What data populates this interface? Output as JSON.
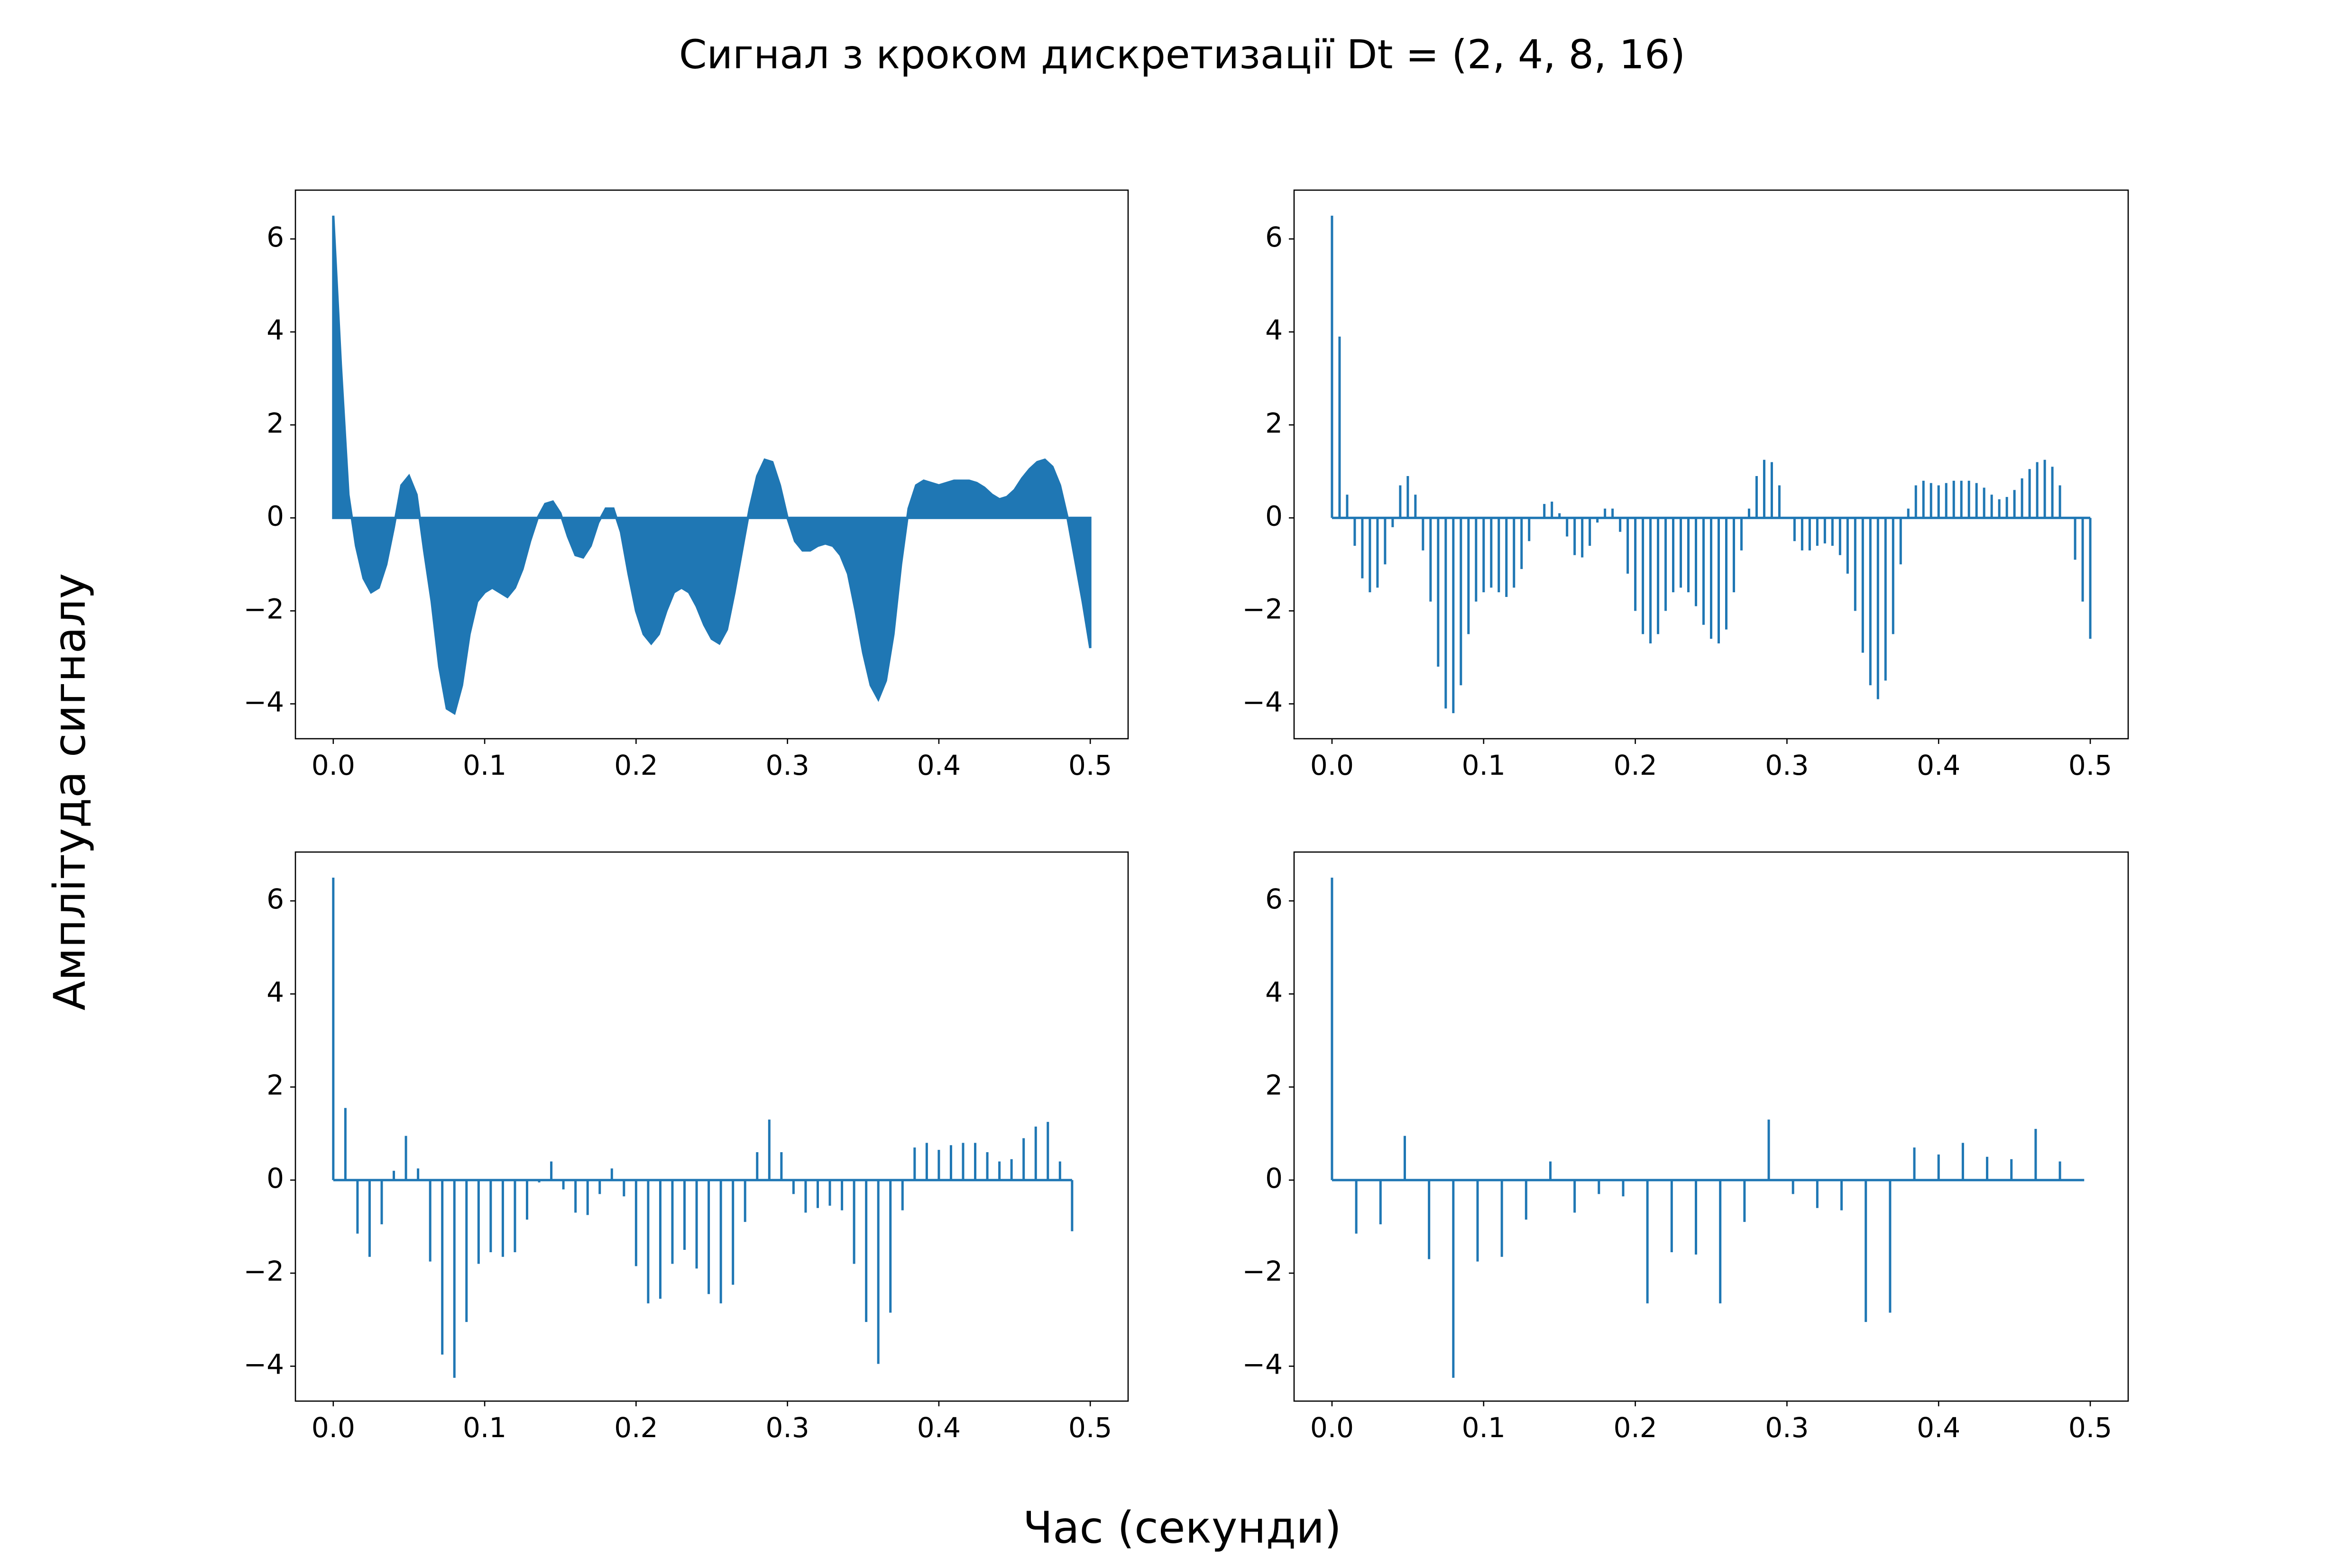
{
  "title": "Сигнал з кроком дискретизації Dt = (2, 4, 8, 16)",
  "xlabel": "Час (секунди)",
  "ylabel": "Амплітуда сигналу",
  "chart_data": [
    {
      "type": "area",
      "color": "#1f77b4",
      "x": [
        0,
        0.005,
        0.01,
        0.015,
        0.02,
        0.025,
        0.03,
        0.035,
        0.04,
        0.045,
        0.05,
        0.055,
        0.06,
        0.065,
        0.07,
        0.075,
        0.08,
        0.085,
        0.09,
        0.095,
        0.1,
        0.105,
        0.11,
        0.115,
        0.12,
        0.125,
        0.13,
        0.135,
        0.14,
        0.145,
        0.15,
        0.155,
        0.16,
        0.165,
        0.17,
        0.175,
        0.18,
        0.185,
        0.19,
        0.195,
        0.2,
        0.205,
        0.21,
        0.215,
        0.22,
        0.225,
        0.23,
        0.235,
        0.24,
        0.245,
        0.25,
        0.255,
        0.26,
        0.265,
        0.27,
        0.275,
        0.28,
        0.285,
        0.29,
        0.295,
        0.3,
        0.305,
        0.31,
        0.315,
        0.32,
        0.325,
        0.33,
        0.335,
        0.34,
        0.345,
        0.35,
        0.355,
        0.36,
        0.365,
        0.37,
        0.375,
        0.38,
        0.385,
        0.39,
        0.395,
        0.4,
        0.405,
        0.41,
        0.415,
        0.42,
        0.425,
        0.43,
        0.435,
        0.44,
        0.445,
        0.45,
        0.455,
        0.46,
        0.465,
        0.47,
        0.475,
        0.48,
        0.485,
        0.49,
        0.495,
        0.5
      ],
      "values": [
        6.5,
        3.3,
        0.5,
        -0.6,
        -1.3,
        -1.6,
        -1.5,
        -1.0,
        -0.2,
        0.7,
        0.9,
        0.5,
        -0.7,
        -1.8,
        -3.2,
        -4.1,
        -4.2,
        -3.6,
        -2.5,
        -1.8,
        -1.6,
        -1.5,
        -1.6,
        -1.7,
        -1.5,
        -1.1,
        -0.5,
        0,
        0.3,
        0.35,
        0.1,
        -0.4,
        -0.8,
        -0.85,
        -0.6,
        -0.1,
        0.2,
        0.2,
        -0.3,
        -1.2,
        -2.0,
        -2.5,
        -2.7,
        -2.5,
        -2.0,
        -1.6,
        -1.5,
        -1.6,
        -1.9,
        -2.3,
        -2.6,
        -2.7,
        -2.4,
        -1.6,
        -0.7,
        0.2,
        0.9,
        1.25,
        1.2,
        0.7,
        0,
        -0.5,
        -0.7,
        -0.7,
        -0.6,
        -0.55,
        -0.6,
        -0.8,
        -1.2,
        -2.0,
        -2.9,
        -3.6,
        -3.9,
        -3.5,
        -2.5,
        -1.0,
        0.2,
        0.7,
        0.8,
        0.75,
        0.7,
        0.75,
        0.8,
        0.8,
        0.8,
        0.75,
        0.65,
        0.5,
        0.4,
        0.45,
        0.6,
        0.85,
        1.05,
        1.2,
        1.25,
        1.1,
        0.7,
        0.0,
        -0.9,
        -1.8,
        -2.8
      ],
      "xlim": [
        -0.025,
        0.525
      ],
      "ylim": [
        -4.75,
        7.05
      ],
      "xticks": [
        {
          "value": 0,
          "label": "0.0"
        },
        0.1,
        0.2,
        0.3,
        0.4,
        0.5
      ],
      "yticks": [
        {
          "value": -4,
          "label": "−4"
        },
        {
          "value": -2,
          "label": "−2"
        },
        0,
        2,
        4,
        6
      ]
    },
    {
      "type": "stem",
      "color": "#1f77b4",
      "x": [
        0,
        0.005,
        0.01,
        0.015,
        0.02,
        0.025,
        0.03,
        0.035,
        0.04,
        0.045,
        0.05,
        0.055,
        0.06,
        0.065,
        0.07,
        0.075,
        0.08,
        0.085,
        0.09,
        0.095,
        0.1,
        0.105,
        0.11,
        0.115,
        0.12,
        0.125,
        0.13,
        0.135,
        0.14,
        0.145,
        0.15,
        0.155,
        0.16,
        0.165,
        0.17,
        0.175,
        0.18,
        0.185,
        0.19,
        0.195,
        0.2,
        0.205,
        0.21,
        0.215,
        0.22,
        0.225,
        0.23,
        0.235,
        0.24,
        0.245,
        0.25,
        0.255,
        0.26,
        0.265,
        0.27,
        0.275,
        0.28,
        0.285,
        0.29,
        0.295,
        0.3,
        0.305,
        0.31,
        0.315,
        0.32,
        0.325,
        0.33,
        0.335,
        0.34,
        0.345,
        0.35,
        0.355,
        0.36,
        0.365,
        0.37,
        0.375,
        0.38,
        0.385,
        0.39,
        0.395,
        0.4,
        0.405,
        0.41,
        0.415,
        0.42,
        0.425,
        0.43,
        0.435,
        0.44,
        0.445,
        0.45,
        0.455,
        0.46,
        0.465,
        0.47,
        0.475,
        0.48,
        0.485,
        0.49,
        0.495,
        0.5
      ],
      "values": [
        6.5,
        3.9,
        0.5,
        -0.6,
        -1.3,
        -1.6,
        -1.5,
        -1.0,
        -0.2,
        0.7,
        0.9,
        0.5,
        -0.7,
        -1.8,
        -3.2,
        -4.1,
        -4.2,
        -3.6,
        -2.5,
        -1.8,
        -1.6,
        -1.5,
        -1.6,
        -1.7,
        -1.5,
        -1.1,
        -0.5,
        0,
        0.3,
        0.35,
        0.1,
        -0.4,
        -0.8,
        -0.85,
        -0.6,
        -0.1,
        0.2,
        0.2,
        -0.3,
        -1.2,
        -2.0,
        -2.5,
        -2.7,
        -2.5,
        -2.0,
        -1.6,
        -1.5,
        -1.6,
        -1.9,
        -2.3,
        -2.6,
        -2.7,
        -2.4,
        -1.6,
        -0.7,
        0.2,
        0.9,
        1.25,
        1.2,
        0.7,
        0,
        -0.5,
        -0.7,
        -0.7,
        -0.6,
        -0.55,
        -0.6,
        -0.8,
        -1.2,
        -2.0,
        -2.9,
        -3.6,
        -3.9,
        -3.5,
        -2.5,
        -1.0,
        0.2,
        0.7,
        0.8,
        0.75,
        0.7,
        0.75,
        0.8,
        0.8,
        0.8,
        0.75,
        0.65,
        0.5,
        0.4,
        0.45,
        0.6,
        0.85,
        1.05,
        1.2,
        1.25,
        1.1,
        0.7,
        0.0,
        -0.9,
        -1.8,
        -2.6
      ],
      "xlim": [
        -0.025,
        0.525
      ],
      "ylim": [
        -4.75,
        7.05
      ],
      "xticks": [
        {
          "value": 0,
          "label": "0.0"
        },
        0.1,
        0.2,
        0.3,
        0.4,
        0.5
      ],
      "yticks": [
        {
          "value": -4,
          "label": "−4"
        },
        {
          "value": -2,
          "label": "−2"
        },
        0,
        2,
        4,
        6
      ]
    },
    {
      "type": "stem",
      "color": "#1f77b4",
      "x": [
        0,
        0.008,
        0.016,
        0.024,
        0.032,
        0.04,
        0.048,
        0.056,
        0.064,
        0.072,
        0.08,
        0.088,
        0.096,
        0.104,
        0.112,
        0.12,
        0.128,
        0.136,
        0.144,
        0.152,
        0.16,
        0.168,
        0.176,
        0.184,
        0.192,
        0.2,
        0.208,
        0.216,
        0.224,
        0.232,
        0.24,
        0.248,
        0.256,
        0.264,
        0.272,
        0.28,
        0.288,
        0.296,
        0.304,
        0.312,
        0.32,
        0.328,
        0.336,
        0.344,
        0.352,
        0.36,
        0.368,
        0.376,
        0.384,
        0.392,
        0.4,
        0.408,
        0.416,
        0.424,
        0.432,
        0.44,
        0.448,
        0.456,
        0.464,
        0.472,
        0.48,
        0.488
      ],
      "values": [
        6.5,
        1.55,
        -1.15,
        -1.65,
        -0.95,
        0.2,
        0.95,
        0.25,
        -1.75,
        -3.75,
        -4.25,
        -3.05,
        -1.8,
        -1.55,
        -1.65,
        -1.55,
        -0.85,
        -0.05,
        0.4,
        -0.2,
        -0.7,
        -0.75,
        -0.3,
        0.25,
        -0.35,
        -1.85,
        -2.65,
        -2.55,
        -1.8,
        -1.5,
        -1.9,
        -2.45,
        -2.65,
        -2.25,
        -0.9,
        0.6,
        1.3,
        0.6,
        -0.3,
        -0.7,
        -0.6,
        -0.55,
        -0.65,
        -1.8,
        -3.05,
        -3.95,
        -2.85,
        -0.65,
        0.7,
        0.8,
        0.65,
        0.75,
        0.8,
        0.8,
        0.6,
        0.4,
        0.45,
        0.9,
        1.15,
        1.25,
        0.4,
        -1.1
      ],
      "xlim": [
        -0.025,
        0.525
      ],
      "ylim": [
        -4.75,
        7.05
      ],
      "xticks": [
        {
          "value": 0,
          "label": "0.0"
        },
        0.1,
        0.2,
        0.3,
        0.4,
        0.5
      ],
      "yticks": [
        {
          "value": -4,
          "label": "−4"
        },
        {
          "value": -2,
          "label": "−2"
        },
        0,
        2,
        4,
        6
      ]
    },
    {
      "type": "stem",
      "color": "#1f77b4",
      "x": [
        0,
        0.016,
        0.032,
        0.048,
        0.064,
        0.08,
        0.096,
        0.112,
        0.128,
        0.144,
        0.16,
        0.176,
        0.192,
        0.208,
        0.224,
        0.24,
        0.256,
        0.272,
        0.288,
        0.304,
        0.32,
        0.336,
        0.352,
        0.368,
        0.384,
        0.4,
        0.416,
        0.432,
        0.448,
        0.464,
        0.48,
        0.496
      ],
      "values": [
        6.5,
        -1.15,
        -0.95,
        0.95,
        -1.7,
        -4.25,
        -1.75,
        -1.65,
        -0.85,
        0.4,
        -0.7,
        -0.3,
        -0.35,
        -2.65,
        -1.55,
        -1.6,
        -2.65,
        -0.9,
        1.3,
        -0.3,
        -0.6,
        -0.65,
        -3.05,
        -2.85,
        0.7,
        0.55,
        0.8,
        0.5,
        0.45,
        1.1,
        0.4,
        0
      ],
      "xlim": [
        -0.025,
        0.525
      ],
      "ylim": [
        -4.75,
        7.05
      ],
      "xticks": [
        {
          "value": 0,
          "label": "0.0"
        },
        0.1,
        0.2,
        0.3,
        0.4,
        0.5
      ],
      "yticks": [
        {
          "value": -4,
          "label": "−4"
        },
        {
          "value": -2,
          "label": "−2"
        },
        0,
        2,
        4,
        6
      ]
    }
  ]
}
